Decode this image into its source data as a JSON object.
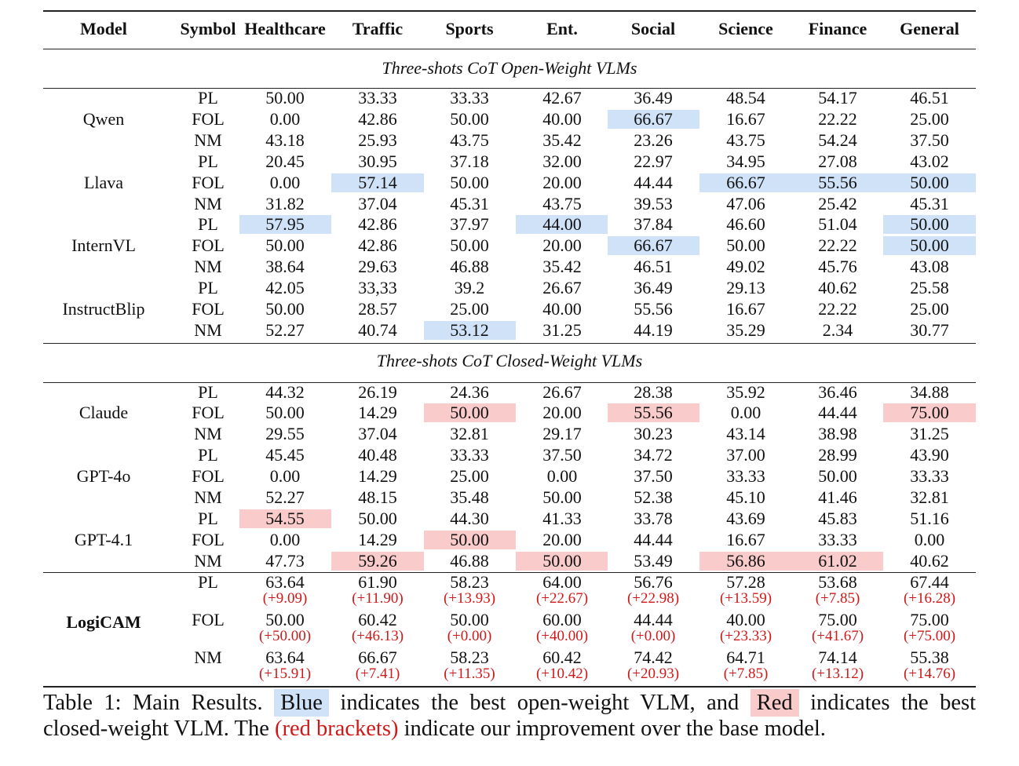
{
  "table": {
    "columns": [
      "Model",
      "Symbol",
      "Healthcare",
      "Traffic",
      "Sports",
      "Ent.",
      "Social",
      "Science",
      "Finance",
      "General"
    ],
    "sections": [
      {
        "title": "Three-shots CoT Open-Weight VLMs",
        "highlight": "blue",
        "models": [
          {
            "name": "Qwen",
            "rows": [
              {
                "symbol": "PL",
                "values": [
                  "50.00",
                  "33.33",
                  "33.33",
                  "42.67",
                  "36.49",
                  "48.54",
                  "54.17",
                  "46.51"
                ],
                "best": []
              },
              {
                "symbol": "FOL",
                "values": [
                  "0.00",
                  "42.86",
                  "50.00",
                  "40.00",
                  "66.67",
                  "16.67",
                  "22.22",
                  "25.00"
                ],
                "best": [
                  4
                ]
              },
              {
                "symbol": "NM",
                "values": [
                  "43.18",
                  "25.93",
                  "43.75",
                  "35.42",
                  "23.26",
                  "43.75",
                  "54.24",
                  "37.50"
                ],
                "best": []
              }
            ]
          },
          {
            "name": "Llava",
            "rows": [
              {
                "symbol": "PL",
                "values": [
                  "20.45",
                  "30.95",
                  "37.18",
                  "32.00",
                  "22.97",
                  "34.95",
                  "27.08",
                  "43.02"
                ],
                "best": []
              },
              {
                "symbol": "FOL",
                "values": [
                  "0.00",
                  "57.14",
                  "50.00",
                  "20.00",
                  "44.44",
                  "66.67",
                  "55.56",
                  "50.00"
                ],
                "best": [
                  1,
                  5,
                  6,
                  7
                ]
              },
              {
                "symbol": "NM",
                "values": [
                  "31.82",
                  "37.04",
                  "45.31",
                  "43.75",
                  "39.53",
                  "47.06",
                  "25.42",
                  "45.31"
                ],
                "best": []
              }
            ]
          },
          {
            "name": "InternVL",
            "rows": [
              {
                "symbol": "PL",
                "values": [
                  "57.95",
                  "42.86",
                  "37.97",
                  "44.00",
                  "37.84",
                  "46.60",
                  "51.04",
                  "50.00"
                ],
                "best": [
                  0,
                  3,
                  7
                ]
              },
              {
                "symbol": "FOL",
                "values": [
                  "50.00",
                  "42.86",
                  "50.00",
                  "20.00",
                  "66.67",
                  "50.00",
                  "22.22",
                  "50.00"
                ],
                "best": [
                  4,
                  7
                ]
              },
              {
                "symbol": "NM",
                "values": [
                  "38.64",
                  "29.63",
                  "46.88",
                  "35.42",
                  "46.51",
                  "49.02",
                  "45.76",
                  "43.08"
                ],
                "best": []
              }
            ]
          },
          {
            "name": "InstructBlip",
            "rows": [
              {
                "symbol": "PL",
                "values": [
                  "42.05",
                  "33,33",
                  "39.2",
                  "26.67",
                  "36.49",
                  "29.13",
                  "40.62",
                  "25.58"
                ],
                "best": []
              },
              {
                "symbol": "FOL",
                "values": [
                  "50.00",
                  "28.57",
                  "25.00",
                  "40.00",
                  "55.56",
                  "16.67",
                  "22.22",
                  "25.00"
                ],
                "best": []
              },
              {
                "symbol": "NM",
                "values": [
                  "52.27",
                  "40.74",
                  "53.12",
                  "31.25",
                  "44.19",
                  "35.29",
                  "2.34",
                  "30.77"
                ],
                "best": [
                  2
                ]
              }
            ]
          }
        ]
      },
      {
        "title": "Three-shots CoT Closed-Weight VLMs",
        "highlight": "red",
        "models": [
          {
            "name": "Claude",
            "rows": [
              {
                "symbol": "PL",
                "values": [
                  "44.32",
                  "26.19",
                  "24.36",
                  "26.67",
                  "28.38",
                  "35.92",
                  "36.46",
                  "34.88"
                ],
                "best": []
              },
              {
                "symbol": "FOL",
                "values": [
                  "50.00",
                  "14.29",
                  "50.00",
                  "20.00",
                  "55.56",
                  "0.00",
                  "44.44",
                  "75.00"
                ],
                "best": [
                  2,
                  4,
                  7
                ]
              },
              {
                "symbol": "NM",
                "values": [
                  "29.55",
                  "37.04",
                  "32.81",
                  "29.17",
                  "30.23",
                  "43.14",
                  "38.98",
                  "31.25"
                ],
                "best": []
              }
            ]
          },
          {
            "name": "GPT-4o",
            "rows": [
              {
                "symbol": "PL",
                "values": [
                  "45.45",
                  "40.48",
                  "33.33",
                  "37.50",
                  "34.72",
                  "37.00",
                  "28.99",
                  "43.90"
                ],
                "best": []
              },
              {
                "symbol": "FOL",
                "values": [
                  "0.00",
                  "14.29",
                  "25.00",
                  "0.00",
                  "37.50",
                  "33.33",
                  "50.00",
                  "33.33"
                ],
                "best": []
              },
              {
                "symbol": "NM",
                "values": [
                  "52.27",
                  "48.15",
                  "35.48",
                  "50.00",
                  "52.38",
                  "45.10",
                  "41.46",
                  "32.81"
                ],
                "best": []
              }
            ]
          },
          {
            "name": "GPT-4.1",
            "rows": [
              {
                "symbol": "PL",
                "values": [
                  "54.55",
                  "50.00",
                  "44.30",
                  "41.33",
                  "33.78",
                  "43.69",
                  "45.83",
                  "51.16"
                ],
                "best": [
                  0
                ]
              },
              {
                "symbol": "FOL",
                "values": [
                  "0.00",
                  "14.29",
                  "50.00",
                  "20.00",
                  "44.44",
                  "16.67",
                  "33.33",
                  "0.00"
                ],
                "best": [
                  2
                ]
              },
              {
                "symbol": "NM",
                "values": [
                  "47.73",
                  "59.26",
                  "46.88",
                  "50.00",
                  "53.49",
                  "56.86",
                  "61.02",
                  "40.62"
                ],
                "best": [
                  1,
                  3,
                  5,
                  6
                ]
              }
            ]
          }
        ]
      }
    ],
    "ours": {
      "name": "LogiCAM",
      "rows": [
        {
          "symbol": "PL",
          "values": [
            "63.64",
            "61.90",
            "58.23",
            "64.00",
            "56.76",
            "57.28",
            "53.68",
            "67.44"
          ],
          "deltas": [
            "(+9.09)",
            "(+11.90)",
            "(+13.93)",
            "(+22.67)",
            "(+22.98)",
            "(+13.59)",
            "(+7.85)",
            "(+16.28)"
          ]
        },
        {
          "symbol": "FOL",
          "values": [
            "50.00",
            "60.42",
            "50.00",
            "60.00",
            "44.44",
            "40.00",
            "75.00",
            "75.00"
          ],
          "deltas": [
            "(+50.00)",
            "(+46.13)",
            "(+0.00)",
            "(+40.00)",
            "(+0.00)",
            "(+23.33)",
            "(+41.67)",
            "(+75.00)"
          ]
        },
        {
          "symbol": "NM",
          "values": [
            "63.64",
            "66.67",
            "58.23",
            "60.42",
            "74.42",
            "64.71",
            "74.14",
            "55.38"
          ],
          "deltas": [
            "(+15.91)",
            "(+7.41)",
            "(+11.35)",
            "(+10.42)",
            "(+20.93)",
            "(+7.85)",
            "(+13.12)",
            "(+14.76)"
          ]
        }
      ]
    }
  },
  "caption": {
    "part1": "Table 1: Main Results.",
    "blue_word": "Blue",
    "part2": "indicates the best open-weight VLM, and",
    "red_word": "Red",
    "part3": "indicates the best",
    "line2_a": "closed-weight VLM. The",
    "line2_red": "(red brackets)",
    "line2_b": "indicate our improvement over the base model."
  },
  "colors": {
    "blue_highlight": "#cfe2f8",
    "red_highlight": "#f9cbcb",
    "delta_text": "#d01818"
  }
}
